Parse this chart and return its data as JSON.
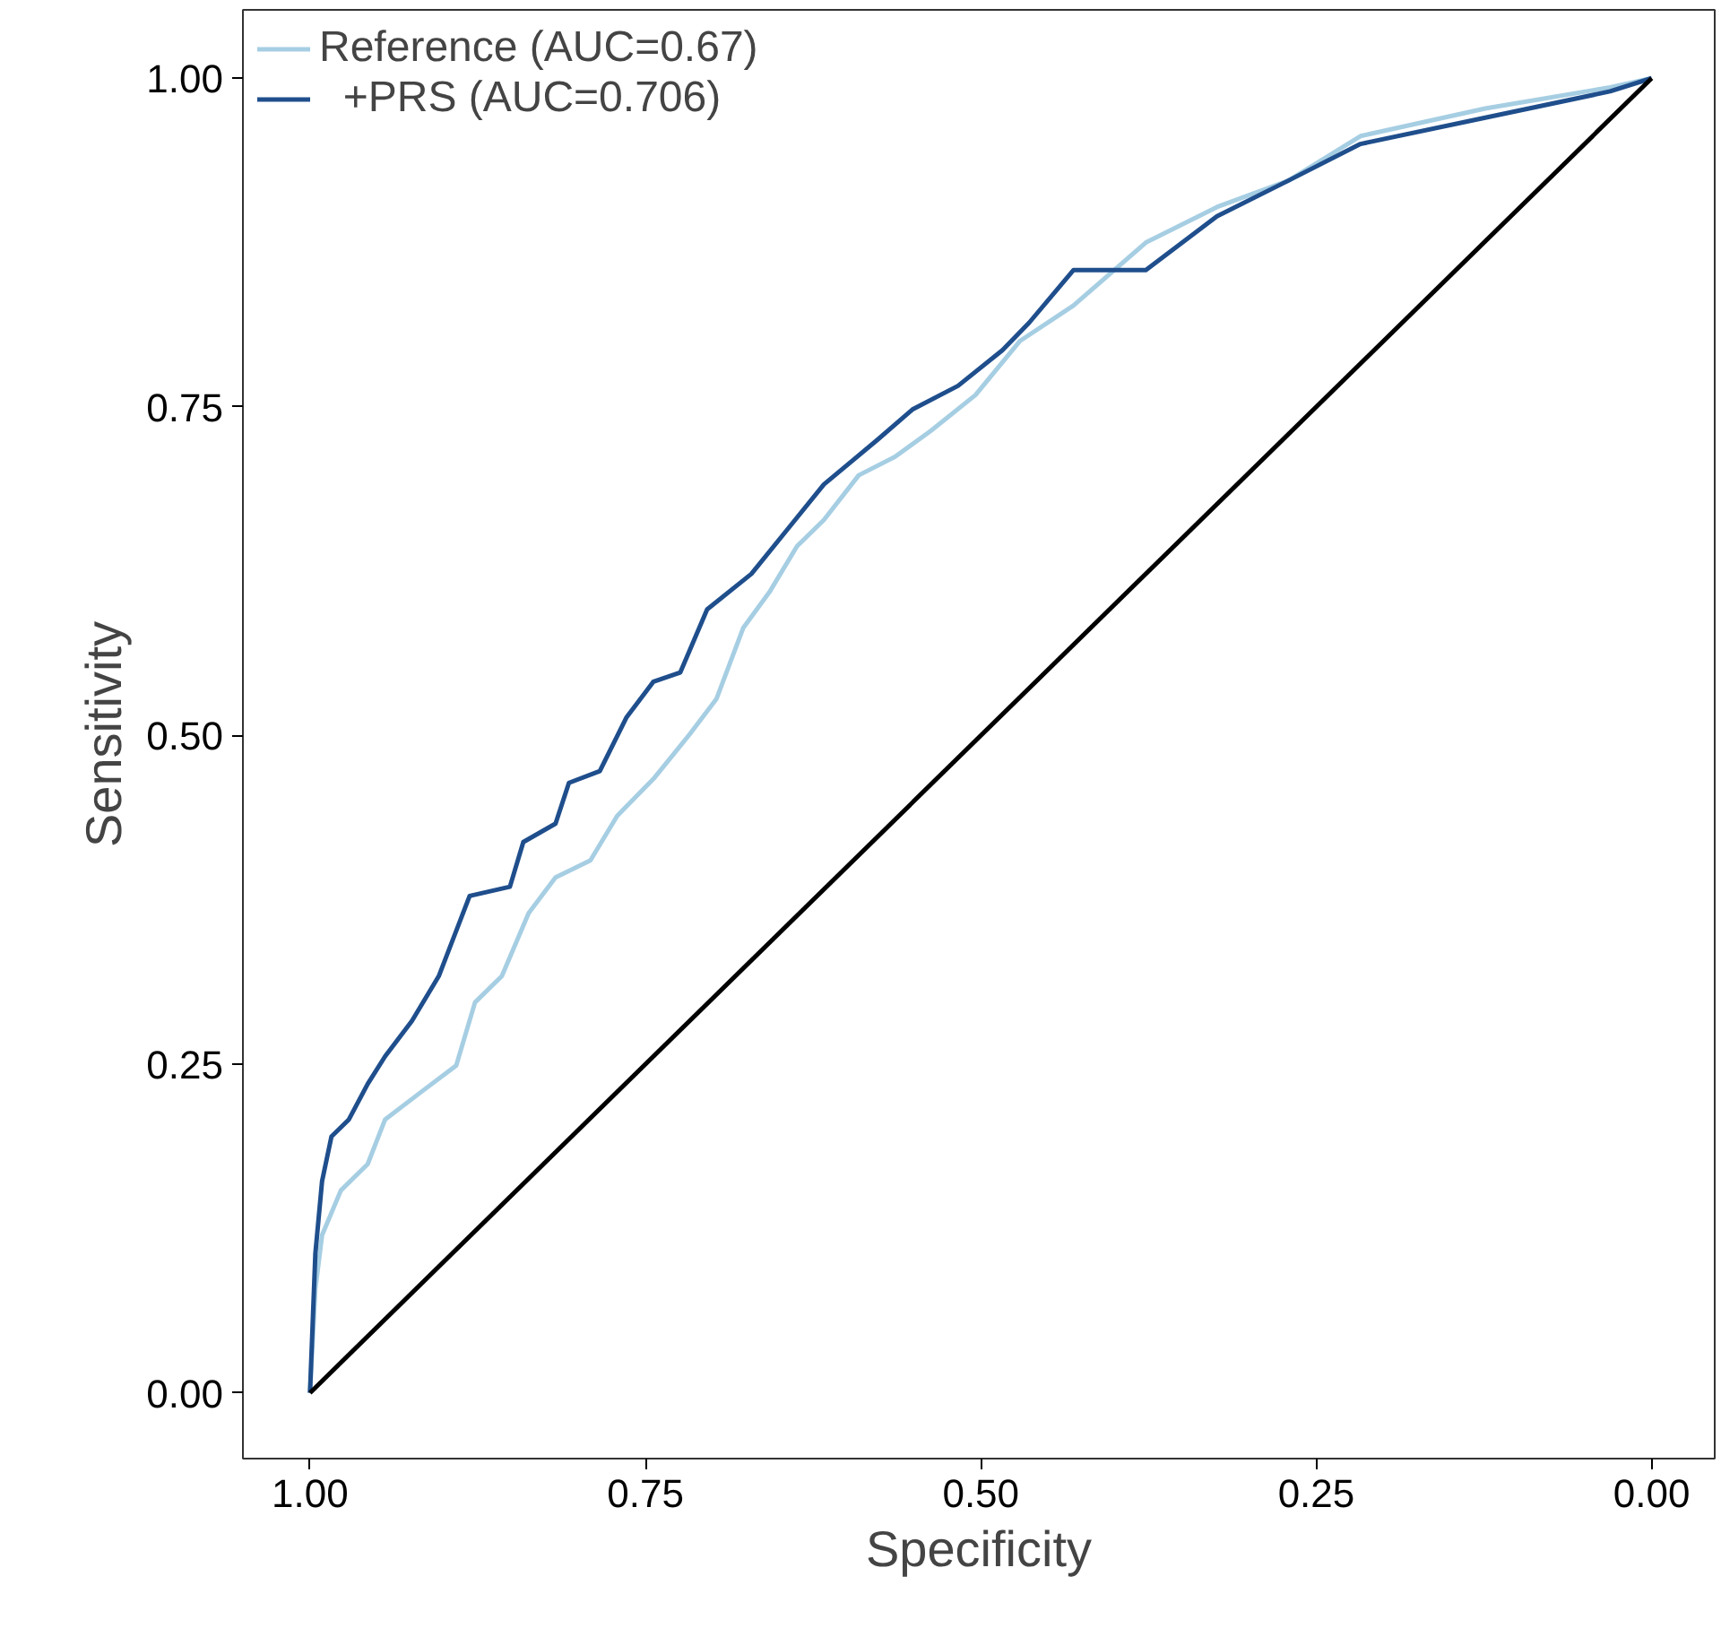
{
  "chart_data": {
    "type": "line",
    "xlabel": "Specificity",
    "ylabel": "Sensitivity",
    "xlim": [
      1.05,
      -0.047
    ],
    "ylim": [
      -0.05,
      1.052
    ],
    "xticks": [
      {
        "value": 1,
        "label": "1.00"
      },
      {
        "value": 0.75,
        "label": "0.75"
      },
      {
        "value": 0.5,
        "label": "0.50"
      },
      {
        "value": 0.25,
        "label": "0.25"
      },
      {
        "value": 0,
        "label": "0.00"
      }
    ],
    "yticks": [
      {
        "value": 0,
        "label": "0.00"
      },
      {
        "value": 0.25,
        "label": "0.25"
      },
      {
        "value": 0.5,
        "label": "0.50"
      },
      {
        "value": 0.75,
        "label": "0.75"
      },
      {
        "value": 1,
        "label": "1.00"
      }
    ],
    "grid": false,
    "legend": "top left",
    "marker": "none",
    "line_style": "solid",
    "series": [
      {
        "name": "Reference (AUC=0.67)",
        "color": "#a6cee3",
        "x": [
          1.0,
          0.996,
          0.991,
          0.977,
          0.957,
          0.944,
          0.917,
          0.891,
          0.877,
          0.857,
          0.837,
          0.817,
          0.791,
          0.771,
          0.744,
          0.717,
          0.697,
          0.677,
          0.657,
          0.637,
          0.617,
          0.591,
          0.564,
          0.537,
          0.504,
          0.471,
          0.431,
          0.377,
          0.324,
          0.271,
          0.217,
          0.124,
          0.031,
          0.0
        ],
        "values": [
          0.0,
          0.079,
          0.12,
          0.154,
          0.174,
          0.208,
          0.229,
          0.249,
          0.297,
          0.317,
          0.365,
          0.392,
          0.405,
          0.439,
          0.467,
          0.501,
          0.528,
          0.582,
          0.61,
          0.644,
          0.664,
          0.698,
          0.712,
          0.732,
          0.759,
          0.8,
          0.827,
          0.875,
          0.902,
          0.922,
          0.956,
          0.977,
          0.993,
          1.0
        ]
      },
      {
        "name": "  +PRS (AUC=0.706)",
        "color": "#1f4e8c",
        "x": [
          1.0,
          0.996,
          0.991,
          0.984,
          0.971,
          0.957,
          0.944,
          0.924,
          0.904,
          0.881,
          0.851,
          0.841,
          0.817,
          0.807,
          0.784,
          0.764,
          0.744,
          0.724,
          0.704,
          0.671,
          0.644,
          0.617,
          0.577,
          0.551,
          0.517,
          0.484,
          0.464,
          0.431,
          0.377,
          0.324,
          0.271,
          0.217,
          0.124,
          0.031,
          0.0
        ],
        "values": [
          0.0,
          0.106,
          0.161,
          0.195,
          0.208,
          0.235,
          0.256,
          0.283,
          0.317,
          0.378,
          0.385,
          0.419,
          0.433,
          0.464,
          0.473,
          0.514,
          0.541,
          0.548,
          0.596,
          0.623,
          0.657,
          0.691,
          0.725,
          0.748,
          0.766,
          0.793,
          0.814,
          0.854,
          0.854,
          0.895,
          0.922,
          0.95,
          0.97,
          0.99,
          1.0
        ]
      },
      {
        "color": "#000000",
        "x": [
          1,
          0
        ],
        "values": [
          0,
          1
        ]
      }
    ]
  }
}
